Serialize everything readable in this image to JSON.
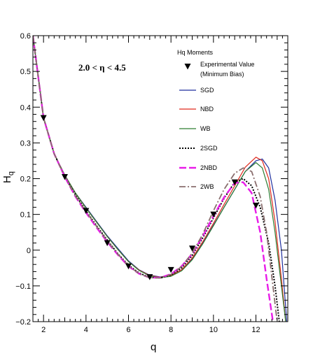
{
  "chart_data": {
    "type": "line",
    "xlabel": "q",
    "ylabel": "H",
    "ylabel_subscript": "q",
    "xlim": [
      1.5,
      13.5
    ],
    "ylim": [
      -0.2,
      0.6
    ],
    "xticks": [
      2,
      4,
      6,
      8,
      10,
      12
    ],
    "yticks": [
      -0.2,
      -0.1,
      0,
      0.1,
      0.2,
      0.3,
      0.4,
      0.5,
      0.6
    ],
    "ytick_labels": [
      "−0.2",
      "−0.1",
      "0",
      "0.1",
      "0.2",
      "0.3",
      "0.4",
      "0.5",
      "0.6"
    ],
    "grid": false,
    "annotation": "2.0 <  η < 4.5",
    "legend": {
      "title": "Hq Moments",
      "placement": "top-right",
      "experimental_label_line1": "Experimental Value",
      "experimental_label_line2": "(Minimum Bias)"
    },
    "experimental": {
      "name": "Experimental Value (Minimum Bias)",
      "x": [
        2,
        3,
        4,
        5,
        6,
        7,
        8,
        9,
        10,
        11,
        12
      ],
      "y": [
        0.37,
        0.205,
        0.11,
        0.02,
        -0.045,
        -0.075,
        -0.055,
        0.005,
        0.1,
        0.19,
        0.125
      ]
    },
    "series": [
      {
        "name": "SGD",
        "color": "#1f2f9e",
        "style": "solid",
        "x": [
          1.5,
          2,
          2.5,
          3,
          3.5,
          4,
          4.5,
          5,
          5.5,
          6,
          6.5,
          7,
          7.5,
          8,
          8.5,
          9,
          9.5,
          10,
          10.5,
          11,
          11.5,
          12,
          12.3,
          12.6,
          12.9,
          13.2,
          13.45
        ],
        "y": [
          0.6,
          0.37,
          0.27,
          0.21,
          0.16,
          0.12,
          0.08,
          0.04,
          0.005,
          -0.03,
          -0.055,
          -0.07,
          -0.075,
          -0.07,
          -0.055,
          -0.025,
          0.02,
          0.07,
          0.12,
          0.17,
          0.22,
          0.25,
          0.255,
          0.23,
          0.14,
          0.0,
          -0.2
        ]
      },
      {
        "name": "NBD",
        "color": "#e0291c",
        "style": "solid",
        "x": [
          1.5,
          2,
          2.5,
          3,
          3.5,
          4,
          4.5,
          5,
          5.5,
          6,
          6.5,
          7,
          7.5,
          8,
          8.5,
          9,
          9.5,
          10,
          10.5,
          11,
          11.5,
          12,
          12.3,
          12.6,
          12.9,
          13.2,
          13.4
        ],
        "y": [
          0.6,
          0.37,
          0.27,
          0.21,
          0.16,
          0.118,
          0.078,
          0.038,
          0.002,
          -0.032,
          -0.056,
          -0.071,
          -0.076,
          -0.071,
          -0.055,
          -0.022,
          0.024,
          0.075,
          0.128,
          0.18,
          0.232,
          0.26,
          0.25,
          0.2,
          0.08,
          -0.08,
          -0.2
        ]
      },
      {
        "name": "WB",
        "color": "#2e7d32",
        "style": "solid",
        "x": [
          1.5,
          2,
          2.5,
          3,
          3.5,
          4,
          4.5,
          5,
          5.5,
          6,
          6.5,
          7,
          7.5,
          8,
          8.5,
          9,
          9.5,
          10,
          10.5,
          11,
          11.5,
          12,
          12.3,
          12.6,
          12.9,
          13.2,
          13.4
        ],
        "y": [
          0.6,
          0.37,
          0.27,
          0.21,
          0.16,
          0.118,
          0.078,
          0.038,
          0.002,
          -0.032,
          -0.057,
          -0.072,
          -0.077,
          -0.073,
          -0.058,
          -0.027,
          0.018,
          0.068,
          0.12,
          0.17,
          0.22,
          0.245,
          0.23,
          0.17,
          0.05,
          -0.1,
          -0.2
        ]
      },
      {
        "name": "2SGD",
        "color": "#000000",
        "style": "dotted",
        "x": [
          1.5,
          2,
          2.5,
          3,
          3.5,
          4,
          4.5,
          5,
          5.5,
          6,
          6.5,
          7,
          7.5,
          8,
          8.5,
          9,
          9.5,
          10,
          10.5,
          11,
          11.4,
          11.8,
          12.2,
          12.6,
          12.9,
          13.1
        ],
        "y": [
          0.6,
          0.37,
          0.27,
          0.205,
          0.155,
          0.11,
          0.068,
          0.028,
          -0.01,
          -0.042,
          -0.064,
          -0.076,
          -0.078,
          -0.07,
          -0.05,
          -0.015,
          0.035,
          0.09,
          0.145,
          0.19,
          0.2,
          0.18,
          0.12,
          0.02,
          -0.1,
          -0.2
        ]
      },
      {
        "name": "2NBD",
        "color": "#e81ce8",
        "style": "dashed",
        "x": [
          1.5,
          2,
          2.5,
          3,
          3.5,
          4,
          4.5,
          5,
          5.5,
          6,
          6.5,
          7,
          7.5,
          8,
          8.5,
          9,
          9.5,
          10,
          10.5,
          11,
          11.4,
          11.8,
          12.2,
          12.5,
          12.8
        ],
        "y": [
          0.6,
          0.37,
          0.27,
          0.205,
          0.15,
          0.105,
          0.063,
          0.023,
          -0.013,
          -0.045,
          -0.066,
          -0.077,
          -0.077,
          -0.067,
          -0.045,
          -0.01,
          0.04,
          0.095,
          0.148,
          0.188,
          0.19,
          0.16,
          0.05,
          -0.08,
          -0.2
        ]
      },
      {
        "name": "2WB",
        "color": "#8a6e6e",
        "style": "dashdot",
        "x": [
          1.5,
          2,
          2.5,
          3,
          3.5,
          4,
          4.5,
          5,
          5.5,
          6,
          6.5,
          7,
          7.5,
          8,
          8.5,
          9,
          9.5,
          10,
          10.5,
          11,
          11.4,
          11.8,
          12.2,
          12.5,
          12.8,
          13.0
        ],
        "y": [
          0.6,
          0.37,
          0.27,
          0.205,
          0.152,
          0.108,
          0.066,
          0.026,
          -0.011,
          -0.044,
          -0.066,
          -0.077,
          -0.078,
          -0.068,
          -0.046,
          -0.008,
          0.045,
          0.11,
          0.17,
          0.215,
          0.23,
          0.22,
          0.15,
          0.05,
          -0.1,
          -0.2
        ]
      }
    ]
  }
}
